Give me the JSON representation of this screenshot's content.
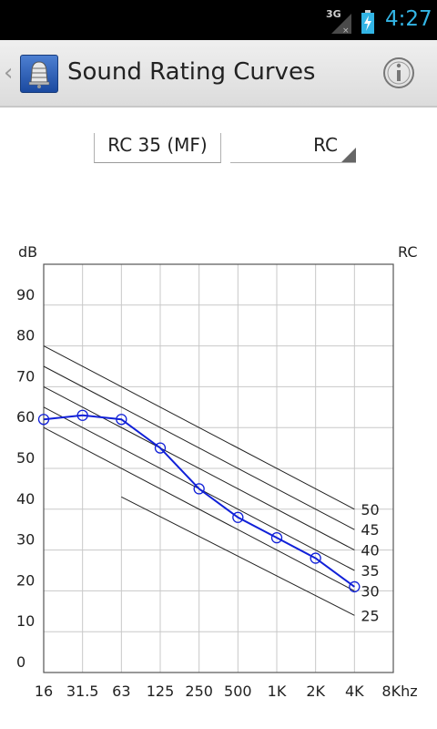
{
  "status_bar": {
    "network": "3G",
    "time": "4:27",
    "colors": {
      "accent": "#33b5e5"
    }
  },
  "action_bar": {
    "title": "Sound Rating Curves",
    "icons": [
      "up-chevron-icon",
      "bell-icon",
      "info-icon"
    ]
  },
  "spinners": {
    "curve_value": "RC 35 (MF)",
    "type_value": "RC"
  },
  "chart_data": {
    "type": "line",
    "ylabel": "dB",
    "right_label": "RC",
    "y_ticks": [
      "0",
      "10",
      "20",
      "30",
      "40",
      "50",
      "60",
      "70",
      "80",
      "90"
    ],
    "x_ticks": [
      "16",
      "31.5",
      "63",
      "125",
      "250",
      "500",
      "1K",
      "2K",
      "4K",
      "8Khz"
    ],
    "ylim": [
      0,
      100
    ],
    "grid": true,
    "rc_curves": [
      {
        "label": "50",
        "points": [
          [
            0,
            80
          ],
          [
            8,
            40
          ]
        ]
      },
      {
        "label": "45",
        "points": [
          [
            0,
            75
          ],
          [
            8,
            35
          ]
        ]
      },
      {
        "label": "40",
        "points": [
          [
            0,
            70
          ],
          [
            8,
            30
          ]
        ]
      },
      {
        "label": "35",
        "points": [
          [
            0,
            65
          ],
          [
            8,
            25
          ]
        ]
      },
      {
        "label": "30",
        "points": [
          [
            0,
            60
          ],
          [
            8,
            20
          ]
        ]
      },
      {
        "label": "25",
        "points": [
          [
            2,
            43
          ],
          [
            8,
            14
          ]
        ]
      }
    ],
    "series": [
      {
        "values": [
          62,
          63,
          62,
          55,
          45,
          38,
          33,
          28,
          21
        ],
        "color": "#1020d8"
      }
    ]
  }
}
